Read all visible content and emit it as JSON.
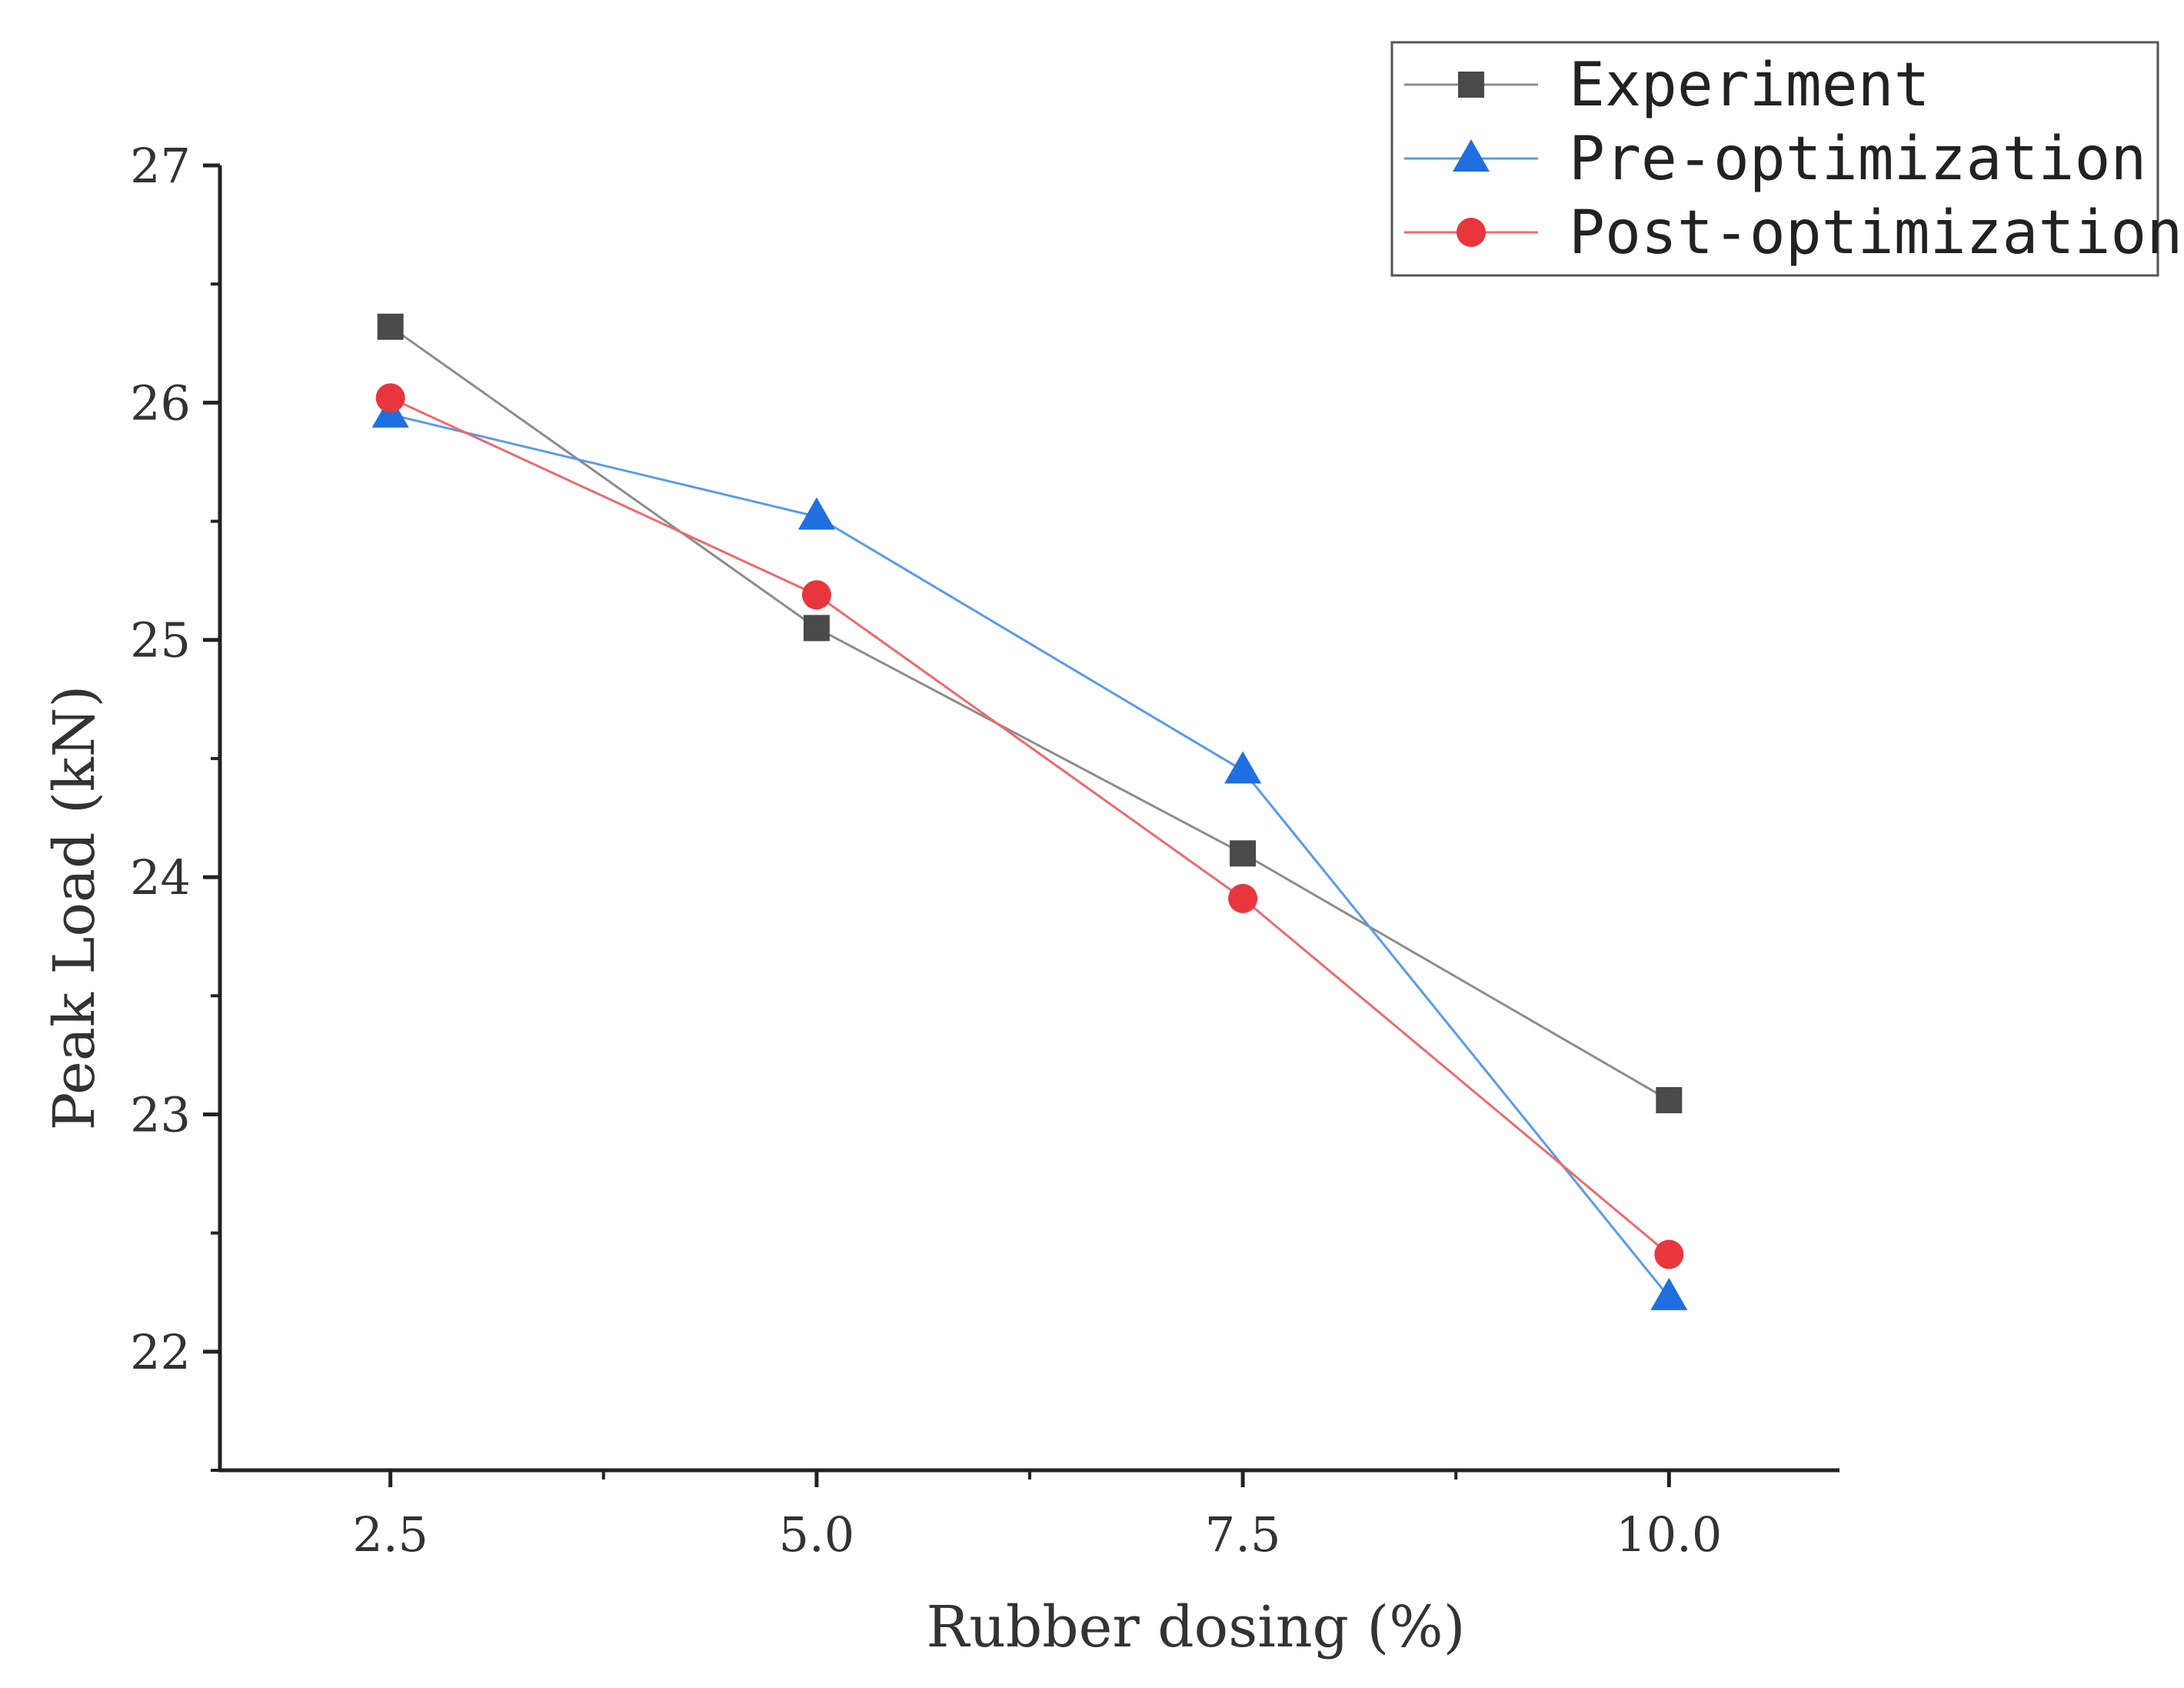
{
  "chart_data": {
    "type": "line",
    "title": "",
    "xlabel": "Rubber dosing (%)",
    "ylabel": "Peak Load (kN)",
    "x": [
      2.5,
      5.0,
      7.5,
      10.0
    ],
    "x_tick_labels": [
      "2.5",
      "5.0",
      "7.5",
      "10.0"
    ],
    "xlim": [
      1.5,
      11.0
    ],
    "ylim": [
      21.5,
      27.0
    ],
    "y_ticks": [
      22,
      23,
      24,
      25,
      26,
      27
    ],
    "y_tick_labels": [
      "22",
      "23",
      "24",
      "25",
      "26",
      "27"
    ],
    "grid": false,
    "legend_position": "top-right",
    "series": [
      {
        "name": "Experiment",
        "marker": "square",
        "color": "#4a4a4a",
        "line_color": "#8c8c8c",
        "values": [
          26.32,
          25.05,
          24.1,
          23.06
        ]
      },
      {
        "name": "Pre-optimization",
        "marker": "triangle",
        "color": "#1f6fe0",
        "line_color": "#5a9ae8",
        "values": [
          25.95,
          25.52,
          24.45,
          22.23
        ]
      },
      {
        "name": "Post-optimization",
        "marker": "circle",
        "color": "#e8363c",
        "line_color": "#ec6a6e",
        "values": [
          26.02,
          25.19,
          23.91,
          22.41
        ]
      }
    ]
  }
}
